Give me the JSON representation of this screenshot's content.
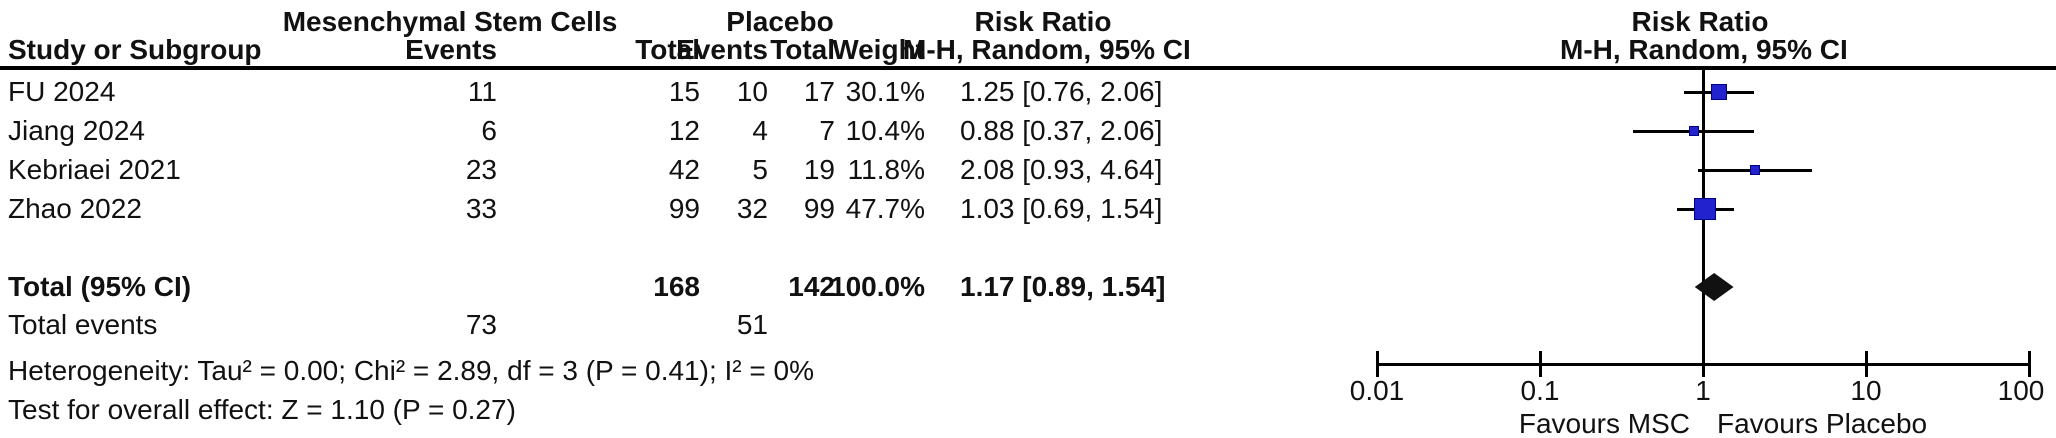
{
  "header": {
    "group1": "Mesenchymal Stem Cells",
    "group2": "Placebo",
    "risk_ratio_left": "Risk Ratio",
    "risk_ratio_right": "Risk Ratio",
    "method_left": "M-H, Random, 95% CI",
    "method_right": "M-H, Random, 95% CI",
    "study_col": "Study or Subgroup",
    "events_col_1": "Events",
    "total_col_1": "Total",
    "events_col_2": "Events",
    "total_col_2": "Total",
    "weight_col": "Weight"
  },
  "studies": [
    {
      "name": "FU 2024",
      "msc_events": "11",
      "msc_total": "15",
      "pbo_events": "10",
      "pbo_total": "17",
      "weight": "30.1%",
      "rr_text": "1.25 [0.76, 2.06]"
    },
    {
      "name": "Jiang 2024",
      "msc_events": "6",
      "msc_total": "12",
      "pbo_events": "4",
      "pbo_total": "7",
      "weight": "10.4%",
      "rr_text": "0.88 [0.37, 2.06]"
    },
    {
      "name": "Kebriaei 2021",
      "msc_events": "23",
      "msc_total": "42",
      "pbo_events": "5",
      "pbo_total": "19",
      "weight": "11.8%",
      "rr_text": "2.08 [0.93, 4.64]"
    },
    {
      "name": "Zhao 2022",
      "msc_events": "33",
      "msc_total": "99",
      "pbo_events": "32",
      "pbo_total": "99",
      "weight": "47.7%",
      "rr_text": "1.03 [0.69, 1.54]"
    }
  ],
  "total_row": {
    "label": "Total (95% CI)",
    "msc_total": "168",
    "pbo_total": "142",
    "weight": "100.0%",
    "rr_text": "1.17 [0.89, 1.54]"
  },
  "total_events_row": {
    "label": "Total events",
    "msc_events": "73",
    "pbo_events": "51"
  },
  "footnotes": {
    "heterogeneity": "Heterogeneity: Tau² = 0.00; Chi² = 2.89, df = 3 (P = 0.41); I² = 0%",
    "overall_effect": "Test for overall effect: Z = 1.10 (P = 0.27)"
  },
  "axis": {
    "tick_labels": [
      "0.01",
      "0.1",
      "1",
      "10",
      "100"
    ],
    "favours_left": "Favours MSC",
    "favours_right": "Favours Placebo"
  },
  "colors": {
    "square": "#2222cf",
    "square_border": "#000080",
    "diamond": "#111111",
    "line": "#000000"
  },
  "chart_data": {
    "type": "scatter",
    "subtype": "forest-plot",
    "effect_measure": "Risk Ratio, M-H, Random, 95% CI",
    "x_scale": "log",
    "x_ticks": [
      0.01,
      0.1,
      1,
      10,
      100
    ],
    "xlim": [
      0.01,
      100
    ],
    "reference_line": 1,
    "series": [
      {
        "name": "FU 2024",
        "rr": 1.25,
        "ci_low": 0.76,
        "ci_high": 2.06,
        "weight_pct": 30.1
      },
      {
        "name": "Jiang 2024",
        "rr": 0.88,
        "ci_low": 0.37,
        "ci_high": 2.06,
        "weight_pct": 10.4
      },
      {
        "name": "Kebriaei 2021",
        "rr": 2.08,
        "ci_low": 0.93,
        "ci_high": 4.64,
        "weight_pct": 11.8
      },
      {
        "name": "Zhao 2022",
        "rr": 1.03,
        "ci_low": 0.69,
        "ci_high": 1.54,
        "weight_pct": 47.7
      }
    ],
    "overall": {
      "label": "Total (95% CI)",
      "rr": 1.17,
      "ci_low": 0.89,
      "ci_high": 1.54,
      "weight_pct": 100.0
    },
    "annotations": {
      "left_of_1": "Favours MSC",
      "right_of_1": "Favours Placebo"
    }
  }
}
